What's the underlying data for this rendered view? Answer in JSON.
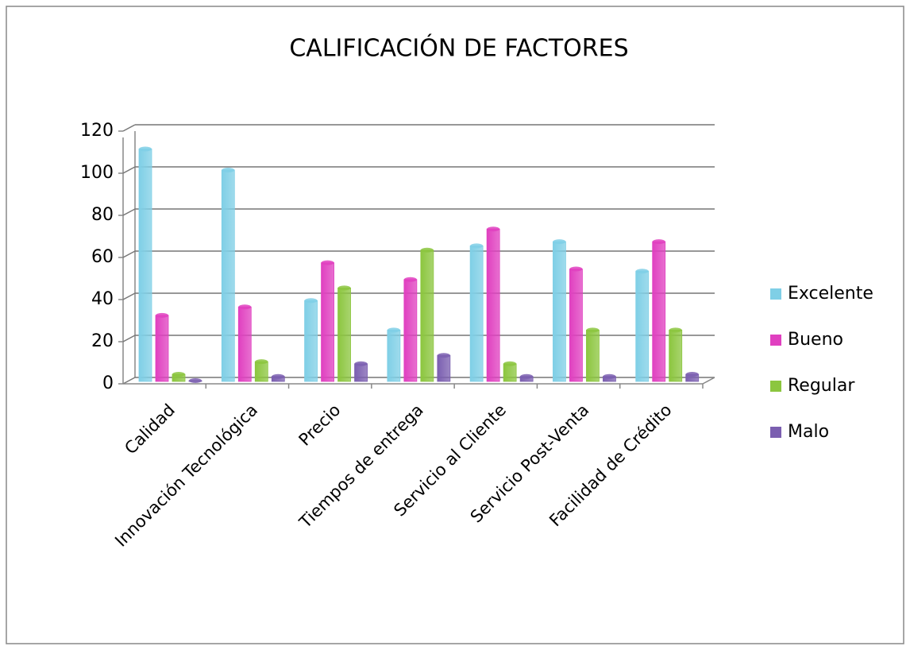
{
  "chart_data": {
    "type": "bar",
    "title": "CALIFICACIÓN DE FACTORES",
    "categories": [
      "Calidad",
      "Innovación Tecnológica",
      "Precio",
      "Tiempos de entrega",
      "Servicio al Cliente",
      "Servicio Post-Venta",
      "Facilidad de Crédito"
    ],
    "series": [
      {
        "name": "Excelente",
        "color": "#7fcfe6",
        "values": [
          110,
          100,
          38,
          24,
          64,
          66,
          52
        ]
      },
      {
        "name": "Bueno",
        "color": "#e040c0",
        "values": [
          31,
          35,
          56,
          48,
          72,
          53,
          66
        ]
      },
      {
        "name": "Regular",
        "color": "#8cc63f",
        "values": [
          3,
          9,
          44,
          62,
          8,
          24,
          24
        ]
      },
      {
        "name": "Malo",
        "color": "#7b5fb0",
        "values": [
          0,
          2,
          8,
          12,
          2,
          2,
          3
        ]
      }
    ],
    "ylim": [
      0,
      120
    ],
    "yticks": [
      0,
      20,
      40,
      60,
      80,
      100,
      120
    ],
    "grid": true,
    "legend": "right"
  }
}
